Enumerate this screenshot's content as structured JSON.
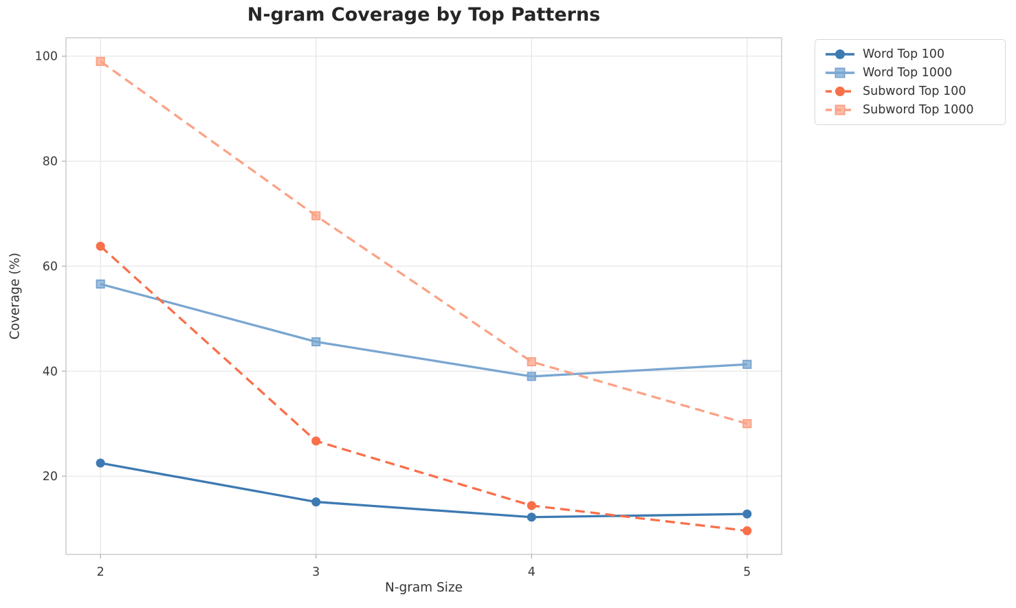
{
  "chart_data": {
    "type": "line",
    "title": "N-gram Coverage by Top Patterns",
    "xlabel": "N-gram Size",
    "ylabel": "Coverage (%)",
    "x": [
      2,
      3,
      4,
      5
    ],
    "xticks": [
      "2",
      "3",
      "4",
      "5"
    ],
    "yticks": [
      20,
      40,
      60,
      80,
      100
    ],
    "xlim": [
      1.84,
      5.16
    ],
    "ylim": [
      5.1,
      103.5
    ],
    "grid": true,
    "legend_position": "outside-upper-right",
    "series": [
      {
        "name": "Word Top 100",
        "color": "#3d7ab2",
        "marker": "circle",
        "line_style": "solid",
        "values": [
          22.5,
          15.1,
          12.2,
          12.8
        ]
      },
      {
        "name": "Word Top 1000",
        "color": "#7aa6d1",
        "marker": "square",
        "line_style": "solid",
        "values": [
          56.6,
          45.6,
          39.0,
          41.3
        ]
      },
      {
        "name": "Subword Top 100",
        "color": "#f96f4a",
        "marker": "circle",
        "line_style": "dashed",
        "values": [
          63.8,
          26.7,
          14.4,
          9.6
        ]
      },
      {
        "name": "Subword Top 1000",
        "color": "#fba286",
        "marker": "square",
        "line_style": "dashed",
        "values": [
          99.0,
          69.6,
          41.8,
          30.0
        ]
      }
    ],
    "style": {
      "grid_color": "#e7e7e7",
      "spine_color": "#c9c9c9",
      "tick_mark_color": "#b3b3b3",
      "tick_label_color": "#3a3a3a",
      "title_color": "#262626",
      "axis_label_color": "#333333",
      "legend_text_color": "#333333",
      "background": "#ffffff"
    }
  }
}
